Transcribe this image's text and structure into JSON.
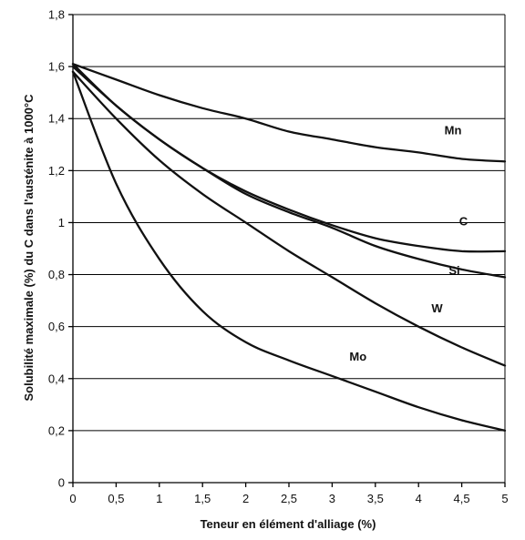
{
  "chart_data": {
    "type": "line",
    "title": "",
    "xlabel": "Teneur en élément d'alliage (%)",
    "ylabel": "Solubilité maximale (%) du C dans l'austénite à 1000°C",
    "xlim": [
      0,
      5
    ],
    "ylim": [
      0,
      1.8
    ],
    "grid": "horizontal",
    "x_ticks": [
      "0",
      "0,5",
      "1",
      "1,5",
      "2",
      "2,5",
      "3",
      "3,5",
      "4",
      "4,5",
      "5"
    ],
    "y_ticks": [
      "0",
      "0,2",
      "0,4",
      "0,6",
      "0,8",
      "1",
      "1,2",
      "1,4",
      "1,6",
      "1,8"
    ],
    "x": [
      0,
      0.5,
      1,
      1.5,
      2,
      2.5,
      3,
      3.5,
      4,
      4.5,
      5
    ],
    "series": [
      {
        "name": "Mn",
        "values": [
          1.61,
          1.55,
          1.49,
          1.44,
          1.4,
          1.35,
          1.32,
          1.29,
          1.27,
          1.245,
          1.235
        ]
      },
      {
        "name": "C",
        "values": [
          1.61,
          1.45,
          1.32,
          1.21,
          1.12,
          1.05,
          0.99,
          0.94,
          0.91,
          0.89,
          0.89
        ]
      },
      {
        "name": "Si",
        "values": [
          1.6,
          1.45,
          1.32,
          1.21,
          1.11,
          1.04,
          0.98,
          0.91,
          0.86,
          0.82,
          0.79
        ]
      },
      {
        "name": "W",
        "values": [
          1.58,
          1.4,
          1.24,
          1.11,
          1.0,
          0.89,
          0.79,
          0.69,
          0.6,
          0.52,
          0.45
        ]
      },
      {
        "name": "Mo",
        "values": [
          1.58,
          1.15,
          0.86,
          0.66,
          0.54,
          0.47,
          0.41,
          0.35,
          0.29,
          0.24,
          0.2
        ]
      }
    ],
    "labels": [
      {
        "text": "Mn",
        "x": 4.3,
        "y": 1.34
      },
      {
        "text": "C",
        "x": 4.47,
        "y": 0.99
      },
      {
        "text": "Si",
        "x": 4.35,
        "y": 0.8
      },
      {
        "text": "W",
        "x": 4.15,
        "y": 0.655
      },
      {
        "text": "Mo",
        "x": 3.2,
        "y": 0.47
      }
    ]
  }
}
